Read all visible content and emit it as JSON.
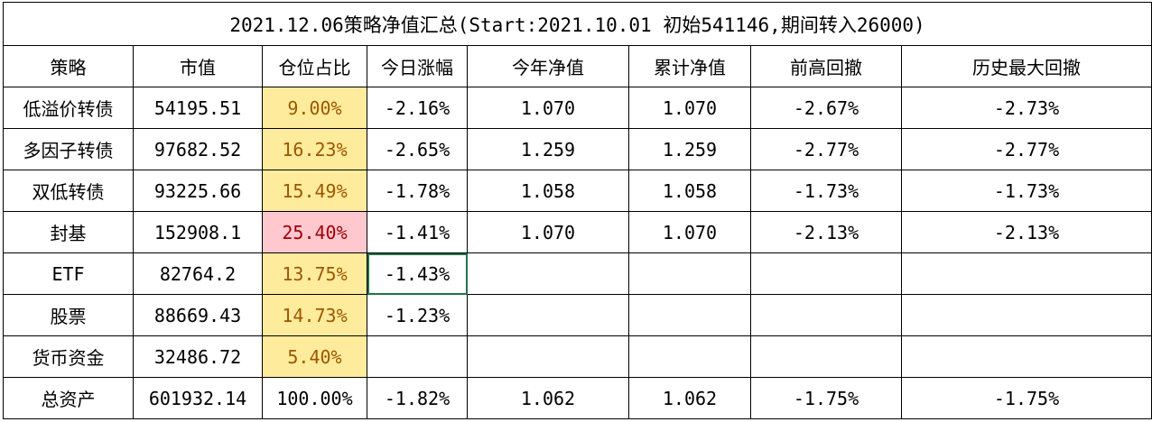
{
  "title": "2021.12.06策略净值汇总(Start:2021.10.01 初始541146,期间转入26000)",
  "table": {
    "header": [
      "策略",
      "市值",
      "仓位占比",
      "今日涨幅",
      "今年净值",
      "累计净值",
      "前高回撤",
      "历史最大回撤"
    ],
    "rows": [
      [
        "低溢价转债",
        "54195.51",
        "9.00%",
        "-2.16%",
        "1.070",
        "1.070",
        "-2.67%",
        "-2.73%"
      ],
      [
        "多因子转债",
        "97682.52",
        "16.23%",
        "-2.65%",
        "1.259",
        "1.259",
        "-2.77%",
        "-2.77%"
      ],
      [
        "双低转债",
        "93225.66",
        "15.49%",
        "-1.78%",
        "1.058",
        "1.058",
        "-1.73%",
        "-1.73%"
      ],
      [
        "封基",
        "152908.1",
        "25.40%",
        "-1.41%",
        "1.070",
        "1.070",
        "-2.13%",
        "-2.13%"
      ],
      [
        "ETF",
        "82764.2",
        "13.75%",
        "-1.43%"
      ],
      [
        "股票",
        "88669.43",
        "14.73%",
        "-1.23%"
      ],
      [
        "货币资金",
        "32486.72",
        "5.40%"
      ],
      [
        "总资产",
        "601932.14",
        "100.00%",
        "-1.82%",
        "1.062",
        "1.062",
        "-1.75%",
        "-1.75%"
      ]
    ]
  }
}
